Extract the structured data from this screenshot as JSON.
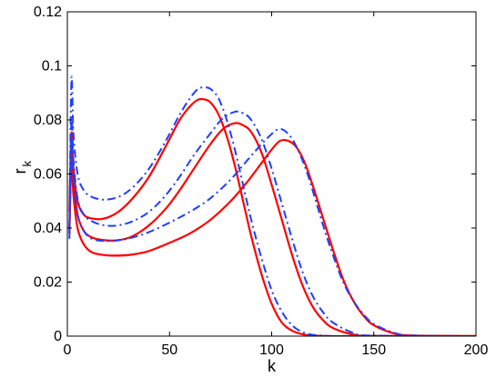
{
  "chart_data": {
    "type": "line",
    "xlabel": "k",
    "ylabel": {
      "base": "r",
      "subscript": "k"
    },
    "xlim": [
      0,
      200
    ],
    "ylim": [
      0,
      0.12
    ],
    "xticks": [
      0,
      50,
      100,
      150,
      200
    ],
    "xtick_labels": [
      "0",
      "50",
      "100",
      "150",
      "200"
    ],
    "yticks": [
      0,
      0.02,
      0.04,
      0.06,
      0.08,
      0.1,
      0.12
    ],
    "ytick_labels": [
      "0",
      "0.02",
      "0.04",
      "0.06",
      "0.08",
      "0.1",
      "0.12"
    ],
    "grid": false,
    "colors": {
      "solid": "#ff0000",
      "dashdot": "#1f3fff"
    },
    "series": [
      {
        "style": "solid",
        "x": [
          1,
          2,
          3,
          5,
          8,
          12,
          18,
          25,
          32,
          40,
          48,
          55,
          60,
          64,
          67,
          70,
          74,
          78,
          82,
          86,
          90,
          95,
          100,
          105,
          110,
          115,
          120,
          130,
          140,
          150,
          200
        ],
        "y": [
          0.046,
          0.075,
          0.062,
          0.05,
          0.045,
          0.0435,
          0.0435,
          0.046,
          0.051,
          0.059,
          0.07,
          0.08,
          0.085,
          0.0875,
          0.0876,
          0.0865,
          0.082,
          0.074,
          0.063,
          0.05,
          0.037,
          0.023,
          0.012,
          0.005,
          0.002,
          0.0007,
          0.0002,
          0,
          0,
          0,
          0
        ]
      },
      {
        "style": "solid",
        "x": [
          1,
          2,
          3,
          5,
          8,
          12,
          18,
          25,
          32,
          40,
          48,
          55,
          62,
          70,
          76,
          82,
          86,
          90,
          95,
          100,
          105,
          110,
          115,
          120,
          125,
          130,
          140,
          150,
          200
        ],
        "y": [
          0.04,
          0.07,
          0.058,
          0.045,
          0.039,
          0.0365,
          0.0355,
          0.0355,
          0.037,
          0.041,
          0.047,
          0.054,
          0.062,
          0.071,
          0.0765,
          0.0788,
          0.078,
          0.0755,
          0.068,
          0.056,
          0.043,
          0.03,
          0.019,
          0.011,
          0.006,
          0.003,
          0.0006,
          0.0001,
          0
        ]
      },
      {
        "style": "solid",
        "x": [
          1,
          2,
          3,
          5,
          8,
          12,
          18,
          25,
          32,
          40,
          50,
          60,
          70,
          80,
          88,
          95,
          100,
          104,
          108,
          112,
          116,
          120,
          125,
          130,
          135,
          140,
          145,
          150,
          160,
          170,
          200
        ],
        "y": [
          0.038,
          0.065,
          0.052,
          0.04,
          0.034,
          0.031,
          0.03,
          0.0298,
          0.0302,
          0.0315,
          0.0345,
          0.038,
          0.043,
          0.05,
          0.057,
          0.064,
          0.069,
          0.0722,
          0.0723,
          0.07,
          0.0645,
          0.056,
          0.044,
          0.032,
          0.021,
          0.013,
          0.0075,
          0.004,
          0.001,
          0.0002,
          0
        ]
      },
      {
        "style": "dashdot",
        "x": [
          1,
          2,
          3,
          5,
          8,
          12,
          18,
          25,
          32,
          40,
          48,
          55,
          60,
          64,
          67,
          70,
          74,
          78,
          82,
          86,
          90,
          95,
          100,
          105,
          110,
          115,
          120,
          130,
          140,
          150,
          200
        ],
        "y": [
          0.04,
          0.095,
          0.075,
          0.06,
          0.054,
          0.0515,
          0.0505,
          0.0515,
          0.055,
          0.062,
          0.072,
          0.082,
          0.088,
          0.0915,
          0.092,
          0.0915,
          0.088,
          0.08,
          0.069,
          0.056,
          0.043,
          0.029,
          0.017,
          0.009,
          0.004,
          0.0015,
          0.0005,
          0,
          0,
          0,
          0
        ]
      },
      {
        "style": "dashdot",
        "x": [
          1,
          2,
          3,
          5,
          8,
          12,
          18,
          25,
          32,
          40,
          48,
          55,
          62,
          70,
          76,
          82,
          86,
          90,
          95,
          100,
          105,
          110,
          115,
          120,
          125,
          130,
          140,
          150,
          200
        ],
        "y": [
          0.038,
          0.08,
          0.065,
          0.051,
          0.045,
          0.0425,
          0.041,
          0.041,
          0.0425,
          0.046,
          0.052,
          0.059,
          0.067,
          0.075,
          0.0805,
          0.083,
          0.0825,
          0.08,
          0.073,
          0.062,
          0.049,
          0.036,
          0.024,
          0.015,
          0.009,
          0.005,
          0.0012,
          0.0002,
          0
        ]
      },
      {
        "style": "dashdot",
        "x": [
          1,
          2,
          3,
          5,
          8,
          12,
          18,
          25,
          32,
          40,
          50,
          60,
          70,
          80,
          88,
          95,
          100,
          103,
          106,
          110,
          114,
          118,
          122,
          126,
          130,
          135,
          140,
          145,
          150,
          160,
          170,
          200
        ],
        "y": [
          0.036,
          0.072,
          0.058,
          0.045,
          0.039,
          0.036,
          0.0352,
          0.0355,
          0.0365,
          0.0385,
          0.042,
          0.046,
          0.051,
          0.058,
          0.065,
          0.071,
          0.0748,
          0.0765,
          0.0762,
          0.073,
          0.067,
          0.059,
          0.049,
          0.039,
          0.03,
          0.02,
          0.013,
          0.008,
          0.0045,
          0.0012,
          0.0002,
          0
        ]
      }
    ]
  }
}
